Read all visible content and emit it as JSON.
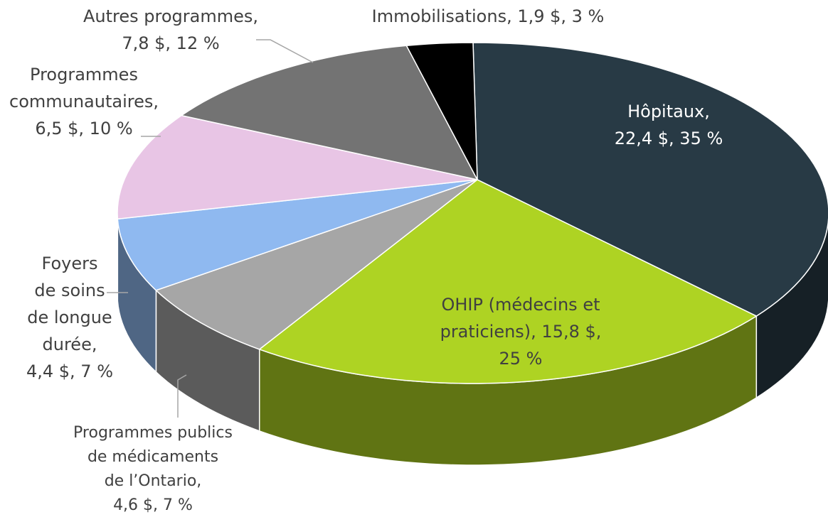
{
  "chart_data": {
    "type": "pie3d",
    "labels": [
      [
        "Hôpitaux,",
        "22,4 $, 35 %"
      ],
      [
        "OHIP (médecins et",
        "praticiens), 15,8 $,",
        "25 %"
      ],
      [
        "Programmes publics",
        "de médicaments",
        "de l’Ontario,",
        "4,6 $, 7 %"
      ],
      [
        "Foyers",
        "de soins",
        "de longue",
        "durée,",
        "4,4 $, 7 %"
      ],
      [
        "Programmes",
        "communautaires,",
        "6,5 $, 10 %"
      ],
      [
        "Autres programmes,",
        "7,8 $, 12 %"
      ],
      [
        "Immobilisations, 1,9 $, 3 %"
      ]
    ],
    "values": [
      22.4,
      15.8,
      4.6,
      4.4,
      6.5,
      7.8,
      1.9
    ],
    "percents": [
      35,
      25,
      7,
      7,
      10,
      12,
      3
    ],
    "colors": [
      "#283a45",
      "#aed323",
      "#a6a6a6",
      "#8fb9f0",
      "#e8c5e5",
      "#737373",
      "#000000"
    ]
  }
}
